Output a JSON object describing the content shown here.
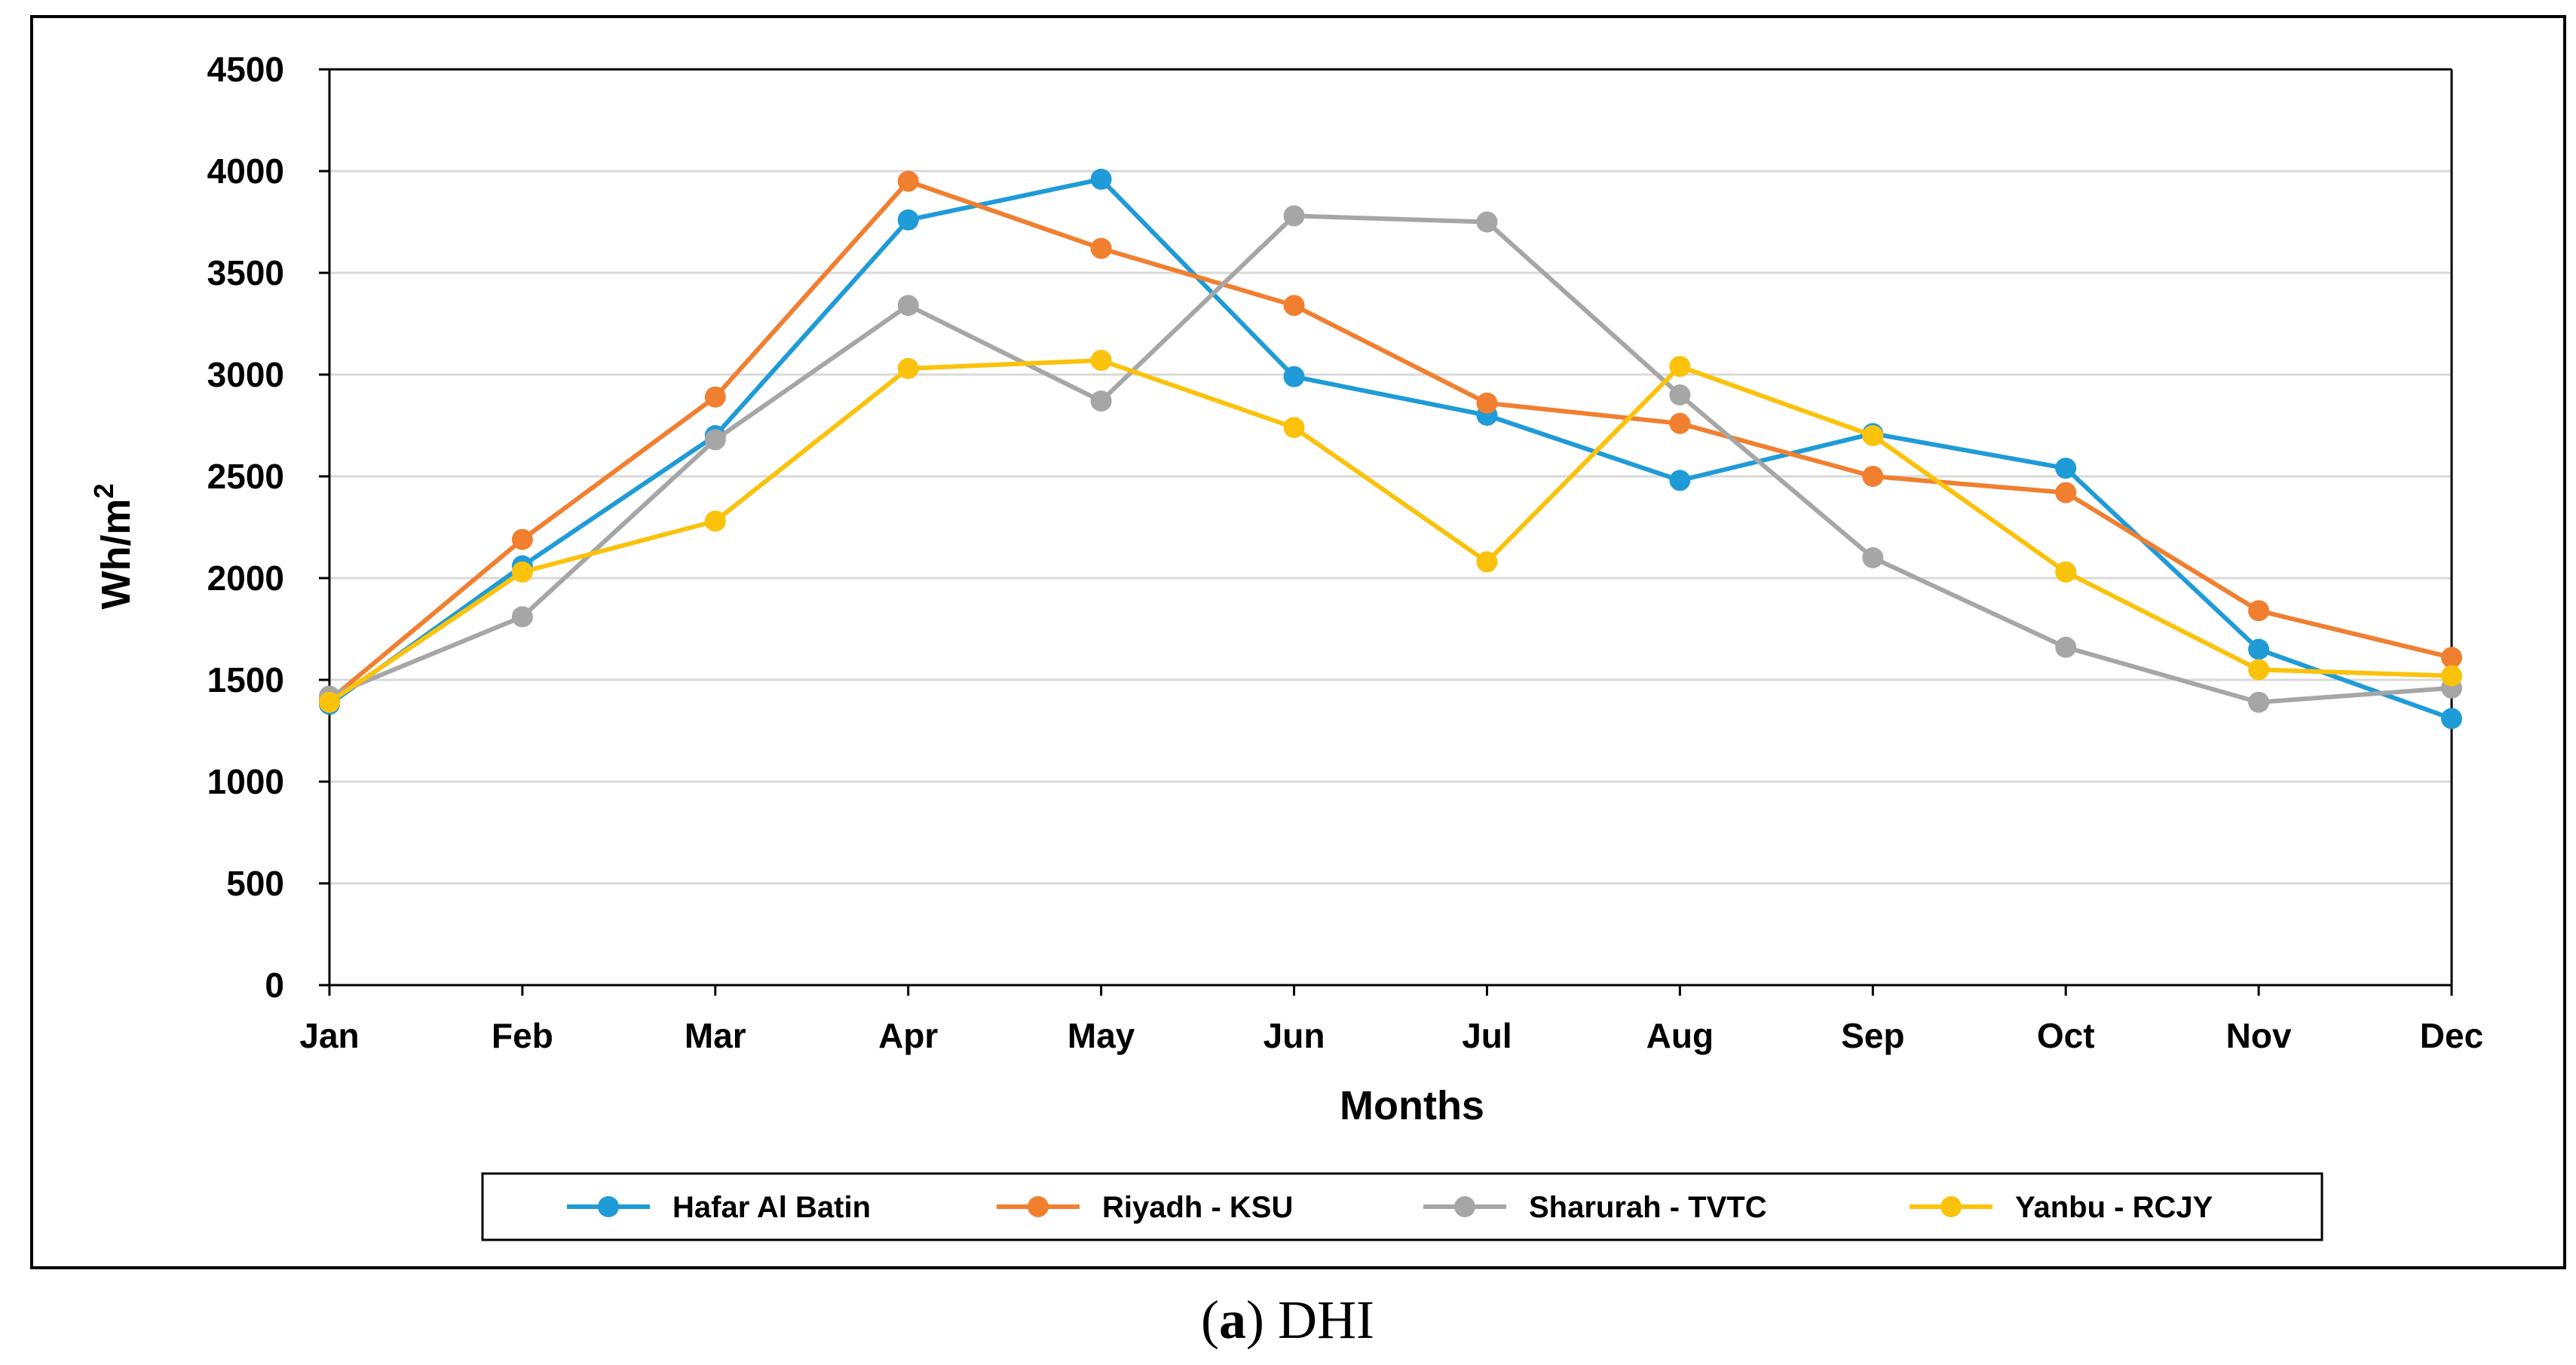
{
  "chart_data": {
    "type": "line",
    "title": "",
    "xlabel": "Months",
    "ylabel": "Wh/m",
    "ylabel_superscript": "2",
    "categories": [
      "Jan",
      "Feb",
      "Mar",
      "Apr",
      "May",
      "Jun",
      "Jul",
      "Aug",
      "Sep",
      "Oct",
      "Nov",
      "Dec"
    ],
    "ylim": [
      0,
      4500
    ],
    "yticks": [
      "0",
      "500",
      "1000",
      "1500",
      "2000",
      "2500",
      "3000",
      "3500",
      "4000",
      "4500"
    ],
    "grid": true,
    "legend_position": "bottom",
    "series": [
      {
        "name": "Hafar Al Batin",
        "color": "#1f9bd7",
        "values": [
          1380,
          2060,
          2700,
          3760,
          3960,
          2990,
          2800,
          2480,
          2710,
          2540,
          1650,
          1310
        ]
      },
      {
        "name": "Riyadh - KSU",
        "color": "#f07f30",
        "values": [
          1400,
          2190,
          2890,
          3950,
          3620,
          3340,
          2860,
          2760,
          2500,
          2420,
          1840,
          1610
        ]
      },
      {
        "name": "Sharurah - TVTC",
        "color": "#a6a6a6",
        "values": [
          1420,
          1810,
          2680,
          3340,
          2870,
          3780,
          3750,
          2900,
          2100,
          1660,
          1390,
          1460
        ]
      },
      {
        "name": "Yanbu - RCJY",
        "color": "#fbc20c",
        "values": [
          1390,
          2030,
          2280,
          3030,
          3070,
          2740,
          2080,
          3040,
          2700,
          2030,
          1550,
          1520
        ]
      }
    ]
  },
  "caption": {
    "label": "a",
    "open_paren": "(",
    "close_paren": ")",
    "text": " DHI"
  }
}
